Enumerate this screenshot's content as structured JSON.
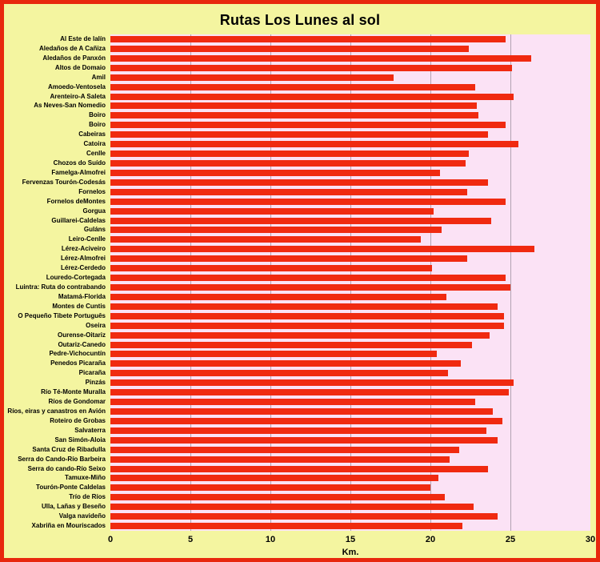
{
  "chart_data": {
    "type": "bar",
    "orientation": "horizontal",
    "title": "Rutas Los Lunes al sol",
    "xlabel": "Km.",
    "xlim": [
      0,
      30
    ],
    "x_ticks": [
      0,
      5,
      10,
      15,
      20,
      25,
      30
    ],
    "grid": true,
    "legend": "none",
    "categories": [
      "Al Este de lalín",
      "Aledaños de A Cañiza",
      "Aledaños de Panxón",
      "Altos de Domaio",
      "Amil",
      "Amoedo-Ventosela",
      "Arenteiro-A Saleta",
      "As Neves-San Nomedio",
      "Boiro",
      "Boiro",
      "Cabeiras",
      "Catoira",
      "Cenlle",
      "Chozos do Suído",
      "Famelga-Almofrei",
      "Fervenzas Tourón-Codesás",
      "Fornelos",
      "Fornelos deMontes",
      "Gorgua",
      "Guillarei-Caldelas",
      "Guláns",
      "Leiro-Cenlle",
      "Lérez-Aciveiro",
      "Lérez-Almofrei",
      "Lérez-Cerdedo",
      "Louredo-Cortegada",
      "Luintra: Ruta do contrabando",
      "Matamá-Florida",
      "Montes de Cuntis",
      "O Pequeño Tibete Português",
      "Oseira",
      "Ourense-Oitariz",
      "Outariz-Canedo",
      "Pedre-Vichocuntín",
      "Penedos Picaraña",
      "Picaraña",
      "Pinzás",
      "Río Té-Monte Muralla",
      "Ríos de Gondomar",
      "Ríos, eiras y canastros en Avión",
      "Roteiro de Grobas",
      "Salvaterra",
      "San Simón-Aloia",
      "Santa Cruz de Ribadulla",
      "Serra do Cando-Río Barbeira",
      "Serra do cando-Río Seixo",
      "Tamuxe-Miño",
      "Tourón-Ponte Caldelas",
      "Trío de Ríos",
      "Ulla, Lañas y Beseño",
      "Valga navideño",
      "Xabriña en Mouriscados"
    ],
    "values": [
      24.7,
      22.4,
      26.3,
      25.1,
      17.7,
      22.8,
      25.2,
      22.9,
      23.0,
      24.7,
      23.6,
      25.5,
      22.4,
      22.2,
      20.6,
      23.6,
      22.3,
      24.7,
      20.2,
      23.8,
      20.7,
      19.4,
      26.5,
      22.3,
      20.1,
      24.7,
      25.0,
      21.0,
      24.2,
      24.6,
      24.6,
      23.7,
      22.6,
      20.4,
      21.9,
      21.1,
      25.2,
      24.9,
      22.8,
      23.9,
      24.5,
      23.5,
      24.2,
      21.8,
      21.2,
      23.6,
      20.5,
      20.0,
      20.9,
      22.7,
      24.2,
      22.0
    ],
    "colors": {
      "page_bg": "#f4f5a0",
      "frame_border": "#e8270d",
      "plot_bg": "#fbe2f5",
      "bar": "#f02a10",
      "gridline": "#b2a3b2",
      "text": "#000000"
    }
  }
}
